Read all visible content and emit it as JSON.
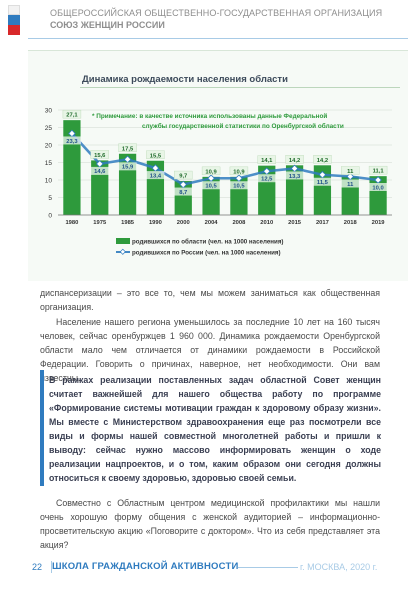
{
  "header": {
    "org_line1": "ОБЩЕРОССИЙСКАЯ ОБЩЕСТВЕННО-ГОСУДАРСТВЕННАЯ ОРГАНИЗАЦИЯ",
    "org_line2": "СОЮЗ ЖЕНЩИН РОССИИ",
    "flag_colors": [
      "#ffffff",
      "#2f7bbf",
      "#d8282a"
    ]
  },
  "chart_data": {
    "type": "bar",
    "title": "Динамика рождаемости населения области",
    "note_line1": "* Примечание: в качестве источника использованы данные Федеральной",
    "note_line2": "службы государственной статистики по Оренбургской области",
    "categories": [
      "1980",
      "1975",
      "1985",
      "1990",
      "2000",
      "2004",
      "2008",
      "2010",
      "2015",
      "2017",
      "2018",
      "2019"
    ],
    "y_ticks": [
      "0",
      "5",
      "10",
      "15",
      "20",
      "25",
      "30"
    ],
    "ylim": [
      0,
      30
    ],
    "series": [
      {
        "name": "родившихся по области (чел. на 1000 населения)",
        "type": "bar",
        "color": "#2e9a3c",
        "values": [
          27.1,
          15.6,
          17.5,
          15.5,
          9.7,
          10.9,
          10.9,
          14.1,
          14.2,
          14.2,
          11.0,
          11.1
        ],
        "labels": [
          "27,1",
          "15,6",
          "17,5",
          "15,5",
          "9,7",
          "10,9",
          "10,9",
          "14,1",
          "14,2",
          "14,2",
          "11",
          "11,1"
        ]
      },
      {
        "name": "родившихся по России (чел. на 1000 населения)",
        "type": "line",
        "color": "#2f7bbf",
        "values": [
          23.3,
          14.6,
          15.9,
          13.4,
          8.7,
          10.5,
          10.5,
          12.5,
          13.3,
          11.5,
          11.0,
          10.0
        ],
        "labels": [
          "23,3",
          "14,6",
          "15,9",
          "13,4",
          "8,7",
          "10,5",
          "10,5",
          "12,5",
          "13,3",
          "11,5",
          "11",
          "10,0"
        ]
      }
    ],
    "grid": true,
    "legend": "bottom"
  },
  "body": {
    "p1": "диспансеризации – это все то, чем мы можем заниматься как общественная организация.",
    "p2": "Население нашего региона уменьшилось за последние 10 лет на 160 тысяч человек, сейчас оренбуржцев 1 960 000. Динамика рождаемости Оренбургской области мало чем отличается от динамики рождаемости в Российской Федерации. Говорить о причинах, наверное, нет необходимости. Они вам известны.",
    "quote": "В рамках реализации поставленных задач областной Совет женщин считает важнейшей для нашего общества работу по программе «Формирование системы мотивации граждан к здоровому образу жизни». Мы вместе с Министерством здравоохранения еще раз посмотрели все виды и формы нашей совместной многолетней работы и пришли к выводу: сейчас нужно массово информировать женщин о ходе реализации нацпроектов, и о том, каким образом они сегодня должны относиться к своему здоровью, здоровью своей семьи.",
    "p3": "Совместно с Областным центром медицинской профилактики мы нашли очень хорошую форму общения с женской аудиторией – информационно-просветительскую акцию «Поговорите с доктором». Что из себя представляет эта акция?"
  },
  "footer": {
    "page_number": "22",
    "section": "ШКОЛА ГРАЖДАНСКОЙ АКТИВНОСТИ",
    "city_year": "г. МОСКВА, 2020 г."
  }
}
